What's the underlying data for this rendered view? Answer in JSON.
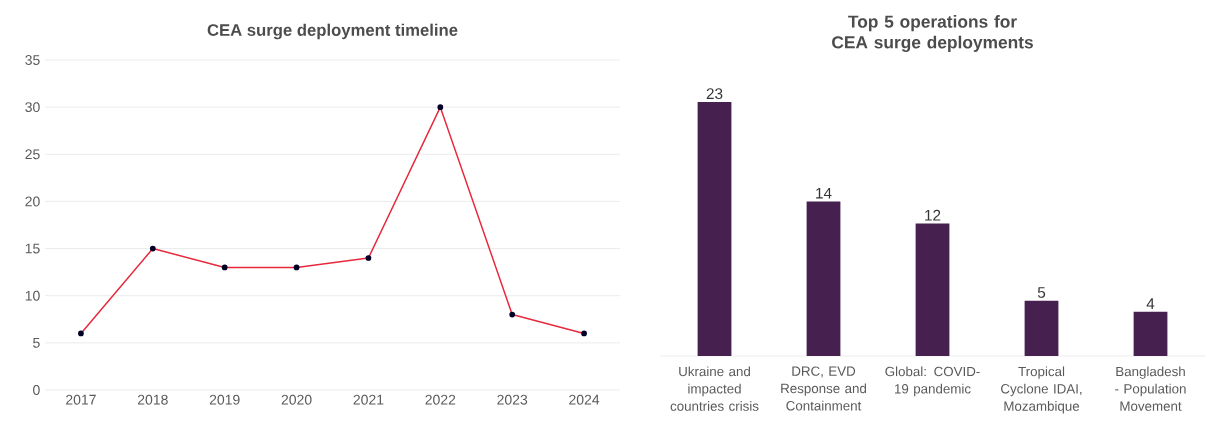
{
  "chart_data": [
    {
      "type": "line",
      "title": "CEA surge deployment timeline",
      "categories": [
        "2017",
        "2018",
        "2019",
        "2020",
        "2021",
        "2022",
        "2023",
        "2024"
      ],
      "series": [
        {
          "color": "#e8283c",
          "values": [
            6,
            15,
            13,
            13,
            14,
            30,
            8,
            6
          ]
        }
      ],
      "ylim": [
        0,
        35
      ],
      "yticks": [
        0,
        5,
        10,
        15,
        20,
        25,
        30,
        35
      ],
      "grid": "y",
      "marker": "circle",
      "line_style": "solid"
    },
    {
      "type": "bar",
      "title": "Top 5 operations for CEA surge deployments",
      "categories": [
        "Ukraine and impacted countries crisis",
        "DRC, EVD Response and Containment",
        "Global: COVID-19 pandemic",
        "Tropical Cyclone IDAI, Mozambique",
        "Bangladesh - Population Movement"
      ],
      "values": [
        23,
        14,
        12,
        5,
        4
      ],
      "color": "#46204e",
      "data_labels": true
    }
  ]
}
